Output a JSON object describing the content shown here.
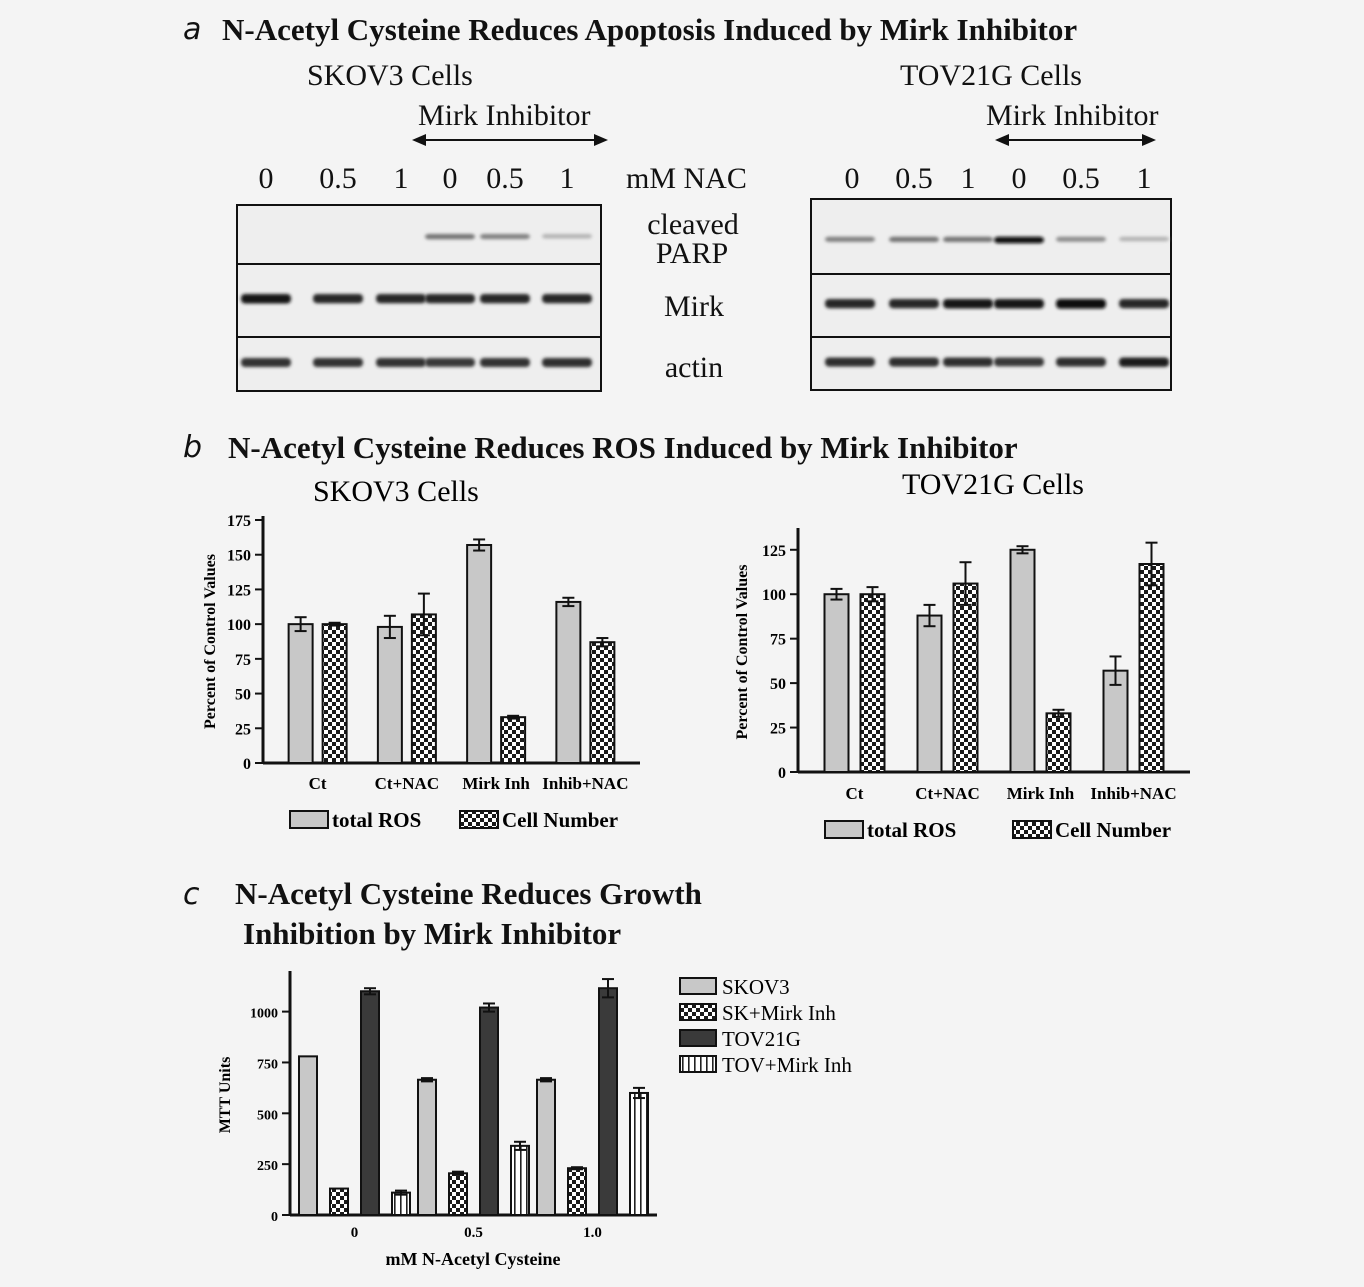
{
  "panel_a": {
    "letter": "a",
    "title": "N-Acetyl Cysteine Reduces Apoptosis Induced by Mirk Inhibitor",
    "left_cells": "SKOV3 Cells",
    "right_cells": "TOV21G Cells",
    "treatment_label": "Mirk Inhibitor",
    "nac_unit_label": "mM NAC",
    "lanes": [
      "0",
      "0.5",
      "1",
      "0",
      "0.5",
      "1"
    ],
    "band_labels": {
      "cleaved": "cleaved",
      "parp": "PARP",
      "mirk": "Mirk",
      "actin": "actin"
    },
    "skov3_cleaved_parp_intensity": [
      0.0,
      0.0,
      0.0,
      0.55,
      0.5,
      0.3
    ],
    "tov21g_cleaved_parp_intensity": [
      0.5,
      0.55,
      0.55,
      0.95,
      0.45,
      0.3
    ]
  },
  "panel_b": {
    "letter": "b",
    "title": "N-Acetyl Cysteine Reduces ROS Induced by Mirk Inhibitor",
    "legend": {
      "ros": "total ROS",
      "cell": "Cell Number"
    }
  },
  "panel_c": {
    "letter": "c",
    "title_line1": "N-Acetyl Cysteine Reduces Growth",
    "title_line2": "Inhibition by Mirk Inhibitor"
  },
  "chart_data": [
    {
      "type": "bar",
      "title": "SKOV3 Cells",
      "ylabel": "Percent of Control Values",
      "ylim": [
        0,
        175
      ],
      "yticks": [
        0,
        25,
        50,
        75,
        100,
        125,
        150,
        175
      ],
      "categories": [
        "Ct",
        "Ct+NAC",
        "Mirk Inh",
        "Inhib+NAC"
      ],
      "series": [
        {
          "name": "total ROS",
          "values": [
            100,
            98,
            157,
            116
          ],
          "errors": [
            5,
            8,
            4,
            3
          ],
          "color": "#c8c8c8",
          "pattern": "solid"
        },
        {
          "name": "Cell Number",
          "values": [
            100,
            107,
            33,
            87
          ],
          "errors": [
            1,
            15,
            1,
            3
          ],
          "color": "#222222",
          "pattern": "checker"
        }
      ]
    },
    {
      "type": "bar",
      "title": "TOV21G Cells",
      "ylabel": "Percent of Control Values",
      "ylim": [
        0,
        135
      ],
      "yticks": [
        0,
        25,
        50,
        75,
        100,
        125
      ],
      "categories": [
        "Ct",
        "Ct+NAC",
        "Mirk Inh",
        "Inhib+NAC"
      ],
      "series": [
        {
          "name": "total ROS",
          "values": [
            100,
            88,
            125,
            57
          ],
          "errors": [
            3,
            6,
            2,
            8
          ],
          "color": "#c8c8c8",
          "pattern": "solid"
        },
        {
          "name": "Cell Number",
          "values": [
            100,
            106,
            33,
            117
          ],
          "errors": [
            4,
            12,
            2,
            12
          ],
          "color": "#222222",
          "pattern": "checker"
        }
      ]
    },
    {
      "type": "bar",
      "title": "",
      "xlabel": "mM N-Acetyl Cysteine",
      "ylabel": "MTT Units",
      "ylim": [
        0,
        1180
      ],
      "yticks": [
        0,
        250,
        500,
        750,
        1000
      ],
      "categories": [
        "0",
        "0.5",
        "1.0"
      ],
      "series": [
        {
          "name": "SKOV3",
          "values": [
            780,
            665,
            665
          ],
          "errors": [
            0,
            8,
            8
          ],
          "color": "#c8c8c8",
          "pattern": "solid"
        },
        {
          "name": "SK+Mirk Inh",
          "values": [
            130,
            205,
            230
          ],
          "errors": [
            0,
            8,
            5
          ],
          "color": "#222222",
          "pattern": "checker"
        },
        {
          "name": "TOV21G",
          "values": [
            1100,
            1020,
            1115
          ],
          "errors": [
            15,
            20,
            45
          ],
          "color": "#3a3a3a",
          "pattern": "dark"
        },
        {
          "name": "TOV+Mirk Inh",
          "values": [
            110,
            340,
            600
          ],
          "errors": [
            10,
            20,
            25
          ],
          "color": "#ffffff",
          "pattern": "stripes"
        }
      ]
    }
  ]
}
